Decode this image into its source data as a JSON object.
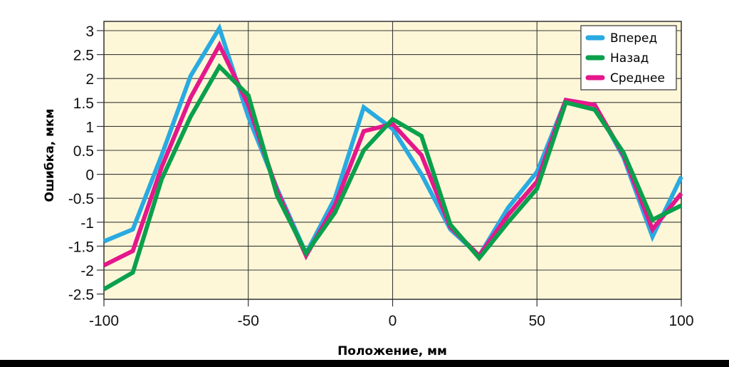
{
  "chart_data": {
    "type": "line",
    "title": "",
    "xlabel": "Положение, мм",
    "ylabel": "Ошибка, мкм",
    "xlim": [
      -100,
      100
    ],
    "ylim": [
      -2.5,
      3.1
    ],
    "x_ticks": [
      -100,
      -50,
      0,
      50,
      100
    ],
    "y_ticks": [
      3,
      2.5,
      2,
      1.5,
      1,
      0.5,
      0,
      -0.5,
      -1,
      -1.5,
      -2,
      -2.5
    ],
    "x_tick_labels": [
      "-100",
      "-50",
      "0",
      "50",
      "100"
    ],
    "y_tick_labels": [
      "3",
      "2.5",
      "2",
      "1.5",
      "1",
      "0.5",
      "0",
      "-0.5",
      "-1",
      "-1.5",
      "-2",
      "-2.5"
    ],
    "grid": {
      "horizontal": true,
      "vertical": true
    },
    "background_color": "#fdf7d8",
    "legend_position": "upper right",
    "x": [
      -100,
      -90,
      -80,
      -70,
      -60,
      -50,
      -40,
      -30,
      -20,
      -10,
      0,
      10,
      20,
      30,
      40,
      50,
      60,
      70,
      80,
      90,
      100
    ],
    "series": [
      {
        "name": "Вперед",
        "color": "#29aae1",
        "values": [
          -1.4,
          -1.15,
          0.4,
          2.05,
          3.05,
          1.2,
          -0.3,
          -1.65,
          -0.5,
          1.4,
          0.95,
          0.0,
          -1.15,
          -1.7,
          -0.7,
          0.05,
          1.55,
          1.45,
          0.35,
          -1.3,
          -0.05
        ]
      },
      {
        "name": "Назад",
        "color": "#0aa04c",
        "values": [
          -2.4,
          -2.05,
          -0.1,
          1.2,
          2.25,
          1.65,
          -0.45,
          -1.65,
          -0.8,
          0.5,
          1.15,
          0.8,
          -1.05,
          -1.75,
          -1.0,
          -0.3,
          1.5,
          1.35,
          0.45,
          -0.95,
          -0.65
        ]
      },
      {
        "name": "Среднее",
        "color": "#e5178b",
        "values": [
          -1.9,
          -1.6,
          0.15,
          1.6,
          2.7,
          1.45,
          -0.35,
          -1.7,
          -0.65,
          0.9,
          1.05,
          0.4,
          -1.1,
          -1.7,
          -0.85,
          -0.15,
          1.55,
          1.45,
          0.4,
          -1.15,
          -0.4
        ]
      }
    ]
  }
}
